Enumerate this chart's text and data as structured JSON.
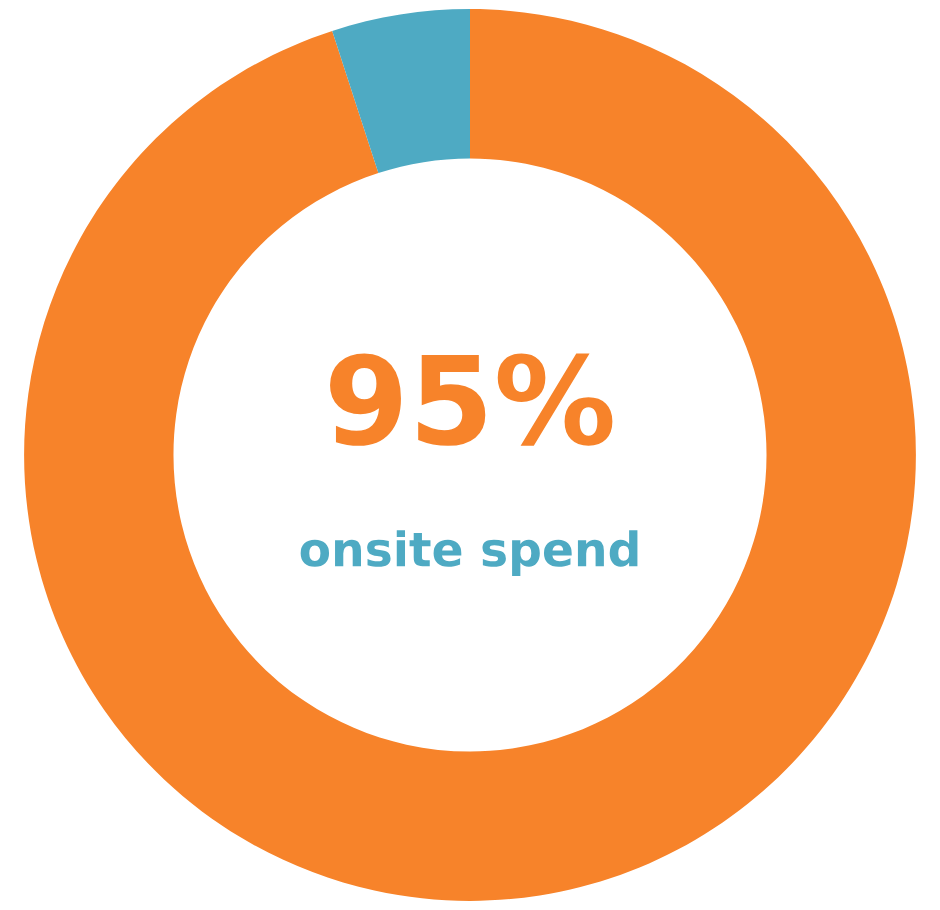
{
  "chart_data": {
    "type": "donut",
    "categories": [
      null,
      null
    ],
    "values": [
      95,
      5
    ],
    "colors": [
      "#f7832a",
      "#4eaac3"
    ],
    "annotations": [
      "95%",
      "onsite spend"
    ]
  }
}
